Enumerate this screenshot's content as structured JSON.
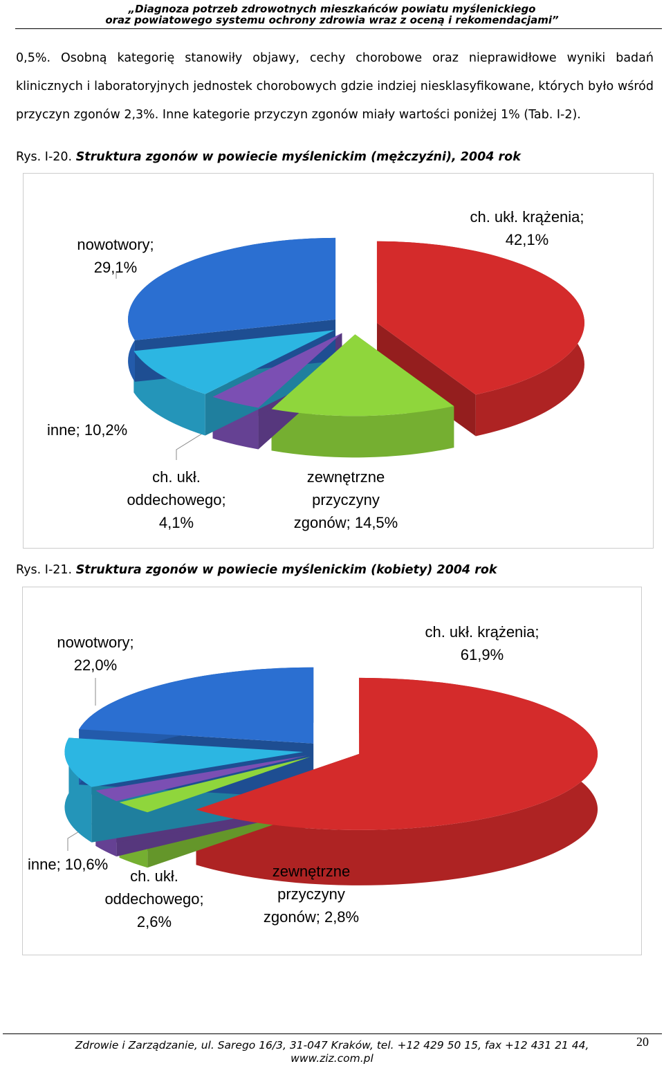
{
  "header": {
    "line1": "„Diagnoza potrzeb zdrowotnych mieszkańców powiatu myślenickiego",
    "line2": "oraz powiatowego systemu ochrony zdrowia wraz z oceną i rekomendacjami”"
  },
  "paragraph": "0,5%. Osobną kategorię stanowiły objawy, cechy chorobowe oraz nieprawidłowe wyniki badań klinicznych i laboratoryjnych jednostek chorobowych gdzie indziej niesklasyfikowane, których było wśród przyczyn zgonów 2,3%. Inne kategorie przyczyn zgonów miały wartości poniżej 1% (Tab. I-2).",
  "chart_data": [
    {
      "type": "pie",
      "figure_label": "Rys. I-20.",
      "title": "Struktura zgonów w powiecie myślenickim (mężczyźni), 2004 rok",
      "categories": [
        "ch. ukł. krążenia;",
        "zewnętrzne przyczyny zgonów;",
        "ch. ukł. oddechowego;",
        "inne;",
        "nowotwory;"
      ],
      "values": [
        42.1,
        14.5,
        4.1,
        10.2,
        29.1
      ],
      "value_labels": [
        "42,1%",
        "14,5%",
        "4,1%",
        "10,2%",
        "29,1%"
      ],
      "colors": [
        "#d42b2b",
        "#8fd63c",
        "#7b4fb3",
        "#2cb6e2",
        "#2b6fd1"
      ]
    },
    {
      "type": "pie",
      "figure_label": "Rys. I-21.",
      "title": "Struktura zgonów w powiecie myślenickim (kobiety) 2004 rok",
      "categories": [
        "ch. ukł. krążenia;",
        "zewnętrzne przyczyny zgonów;",
        "ch. ukł. oddechowego;",
        "inne;",
        "nowotwory;"
      ],
      "values": [
        61.9,
        2.8,
        2.6,
        10.6,
        22.0
      ],
      "value_labels": [
        "61,9%",
        "2,8%",
        "2,6%",
        "10,6%",
        "22,0%"
      ],
      "colors": [
        "#d42b2b",
        "#8fd63c",
        "#7b4fb3",
        "#2cb6e2",
        "#2b6fd1"
      ]
    }
  ],
  "footer": {
    "address": "Zdrowie i Zarządzanie, ul. Sarego 16/3, 31-047 Kraków, tel. +12 429 50 15, fax +12 431 21 44,",
    "website": "www.ziz.com.pl",
    "page_number": 20
  }
}
